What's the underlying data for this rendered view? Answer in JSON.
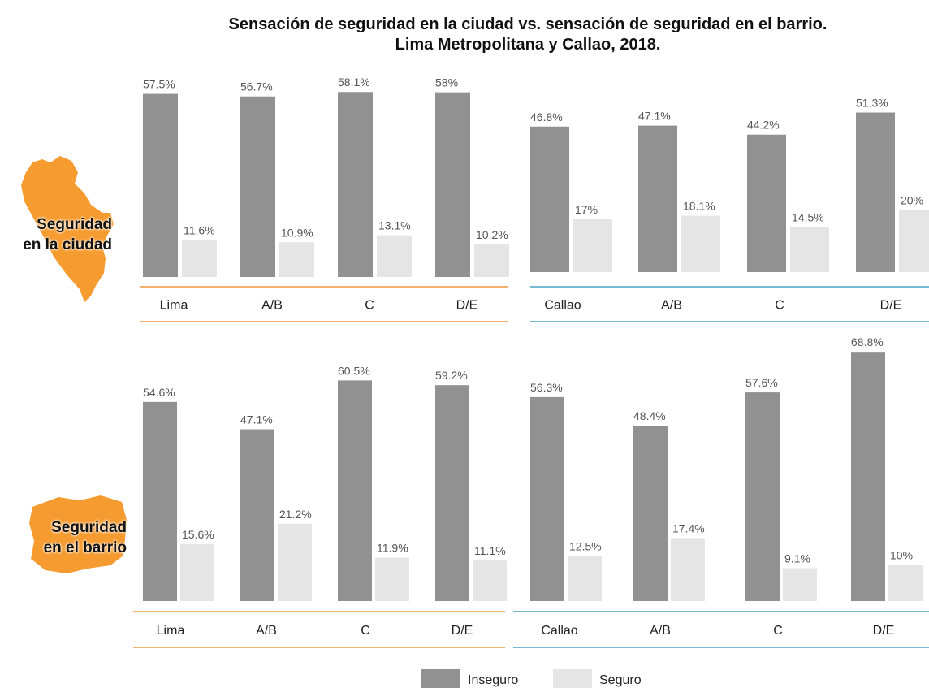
{
  "title_line1": "Sensación de seguridad en la ciudad vs. sensación de seguridad en el barrio.",
  "title_line2": "Lima Metropolitana y Callao, 2018.",
  "row_labels": [
    {
      "line1": "Seguridad",
      "line2": "en la ciudad"
    },
    {
      "line1": "Seguridad",
      "line2": "en el barrio"
    }
  ],
  "legend": {
    "inseguro": "Inseguro",
    "seguro": "Seguro"
  },
  "colors": {
    "inseguro": "#919191",
    "seguro": "#e5e5e5",
    "lima_axis": "#f0973a",
    "callao_axis": "#4aa3c9",
    "map_fill": "#f59b30",
    "value_text": "#555555",
    "category_text": "#222222"
  },
  "icons": {
    "ciudad": "peru-map-icon",
    "barrio": "neighborhood-map-icon"
  },
  "chart_data": [
    {
      "type": "bar",
      "row": "Seguridad en la ciudad",
      "region": "Lima",
      "categories": [
        "Lima",
        "A/B",
        "C",
        "D/E"
      ],
      "series": [
        {
          "name": "Inseguro",
          "values": [
            57.5,
            56.7,
            58.1,
            58
          ],
          "labels": [
            "57.5%",
            "56.7%",
            "58.1%",
            "58%"
          ]
        },
        {
          "name": "Seguro",
          "values": [
            11.6,
            10.9,
            13.1,
            10.2
          ],
          "labels": [
            "11.6%",
            "10.9%",
            "13.1%",
            "10.2%"
          ]
        }
      ]
    },
    {
      "type": "bar",
      "row": "Seguridad en la ciudad",
      "region": "Callao",
      "categories": [
        "Callao",
        "A/B",
        "C",
        "D/E"
      ],
      "series": [
        {
          "name": "Inseguro",
          "values": [
            46.8,
            47.1,
            44.2,
            51.3
          ],
          "labels": [
            "46.8%",
            "47.1%",
            "44.2%",
            "51.3%"
          ]
        },
        {
          "name": "Seguro",
          "values": [
            17,
            18.1,
            14.5,
            20
          ],
          "labels": [
            "17%",
            "18.1%",
            "14.5%",
            "20%"
          ]
        }
      ]
    },
    {
      "type": "bar",
      "row": "Seguridad en el barrio",
      "region": "Lima",
      "categories": [
        "Lima",
        "A/B",
        "C",
        "D/E"
      ],
      "series": [
        {
          "name": "Inseguro",
          "values": [
            54.6,
            47.1,
            60.5,
            59.2
          ],
          "labels": [
            "54.6%",
            "47.1%",
            "60.5%",
            "59.2%"
          ]
        },
        {
          "name": "Seguro",
          "values": [
            15.6,
            21.2,
            11.9,
            11.1
          ],
          "labels": [
            "15.6%",
            "21.2%",
            "11.9%",
            "11.1%"
          ]
        }
      ]
    },
    {
      "type": "bar",
      "row": "Seguridad en el barrio",
      "region": "Callao",
      "categories": [
        "Callao",
        "A/B",
        "C",
        "D/E"
      ],
      "series": [
        {
          "name": "Inseguro",
          "values": [
            56.3,
            48.4,
            57.6,
            68.8
          ],
          "labels": [
            "56.3%",
            "48.4%",
            "57.6%",
            "68.8%"
          ]
        },
        {
          "name": "Seguro",
          "values": [
            12.5,
            17.4,
            9.1,
            10
          ],
          "labels": [
            "12.5%",
            "17.4%",
            "9.1%",
            "10%"
          ]
        }
      ]
    }
  ]
}
